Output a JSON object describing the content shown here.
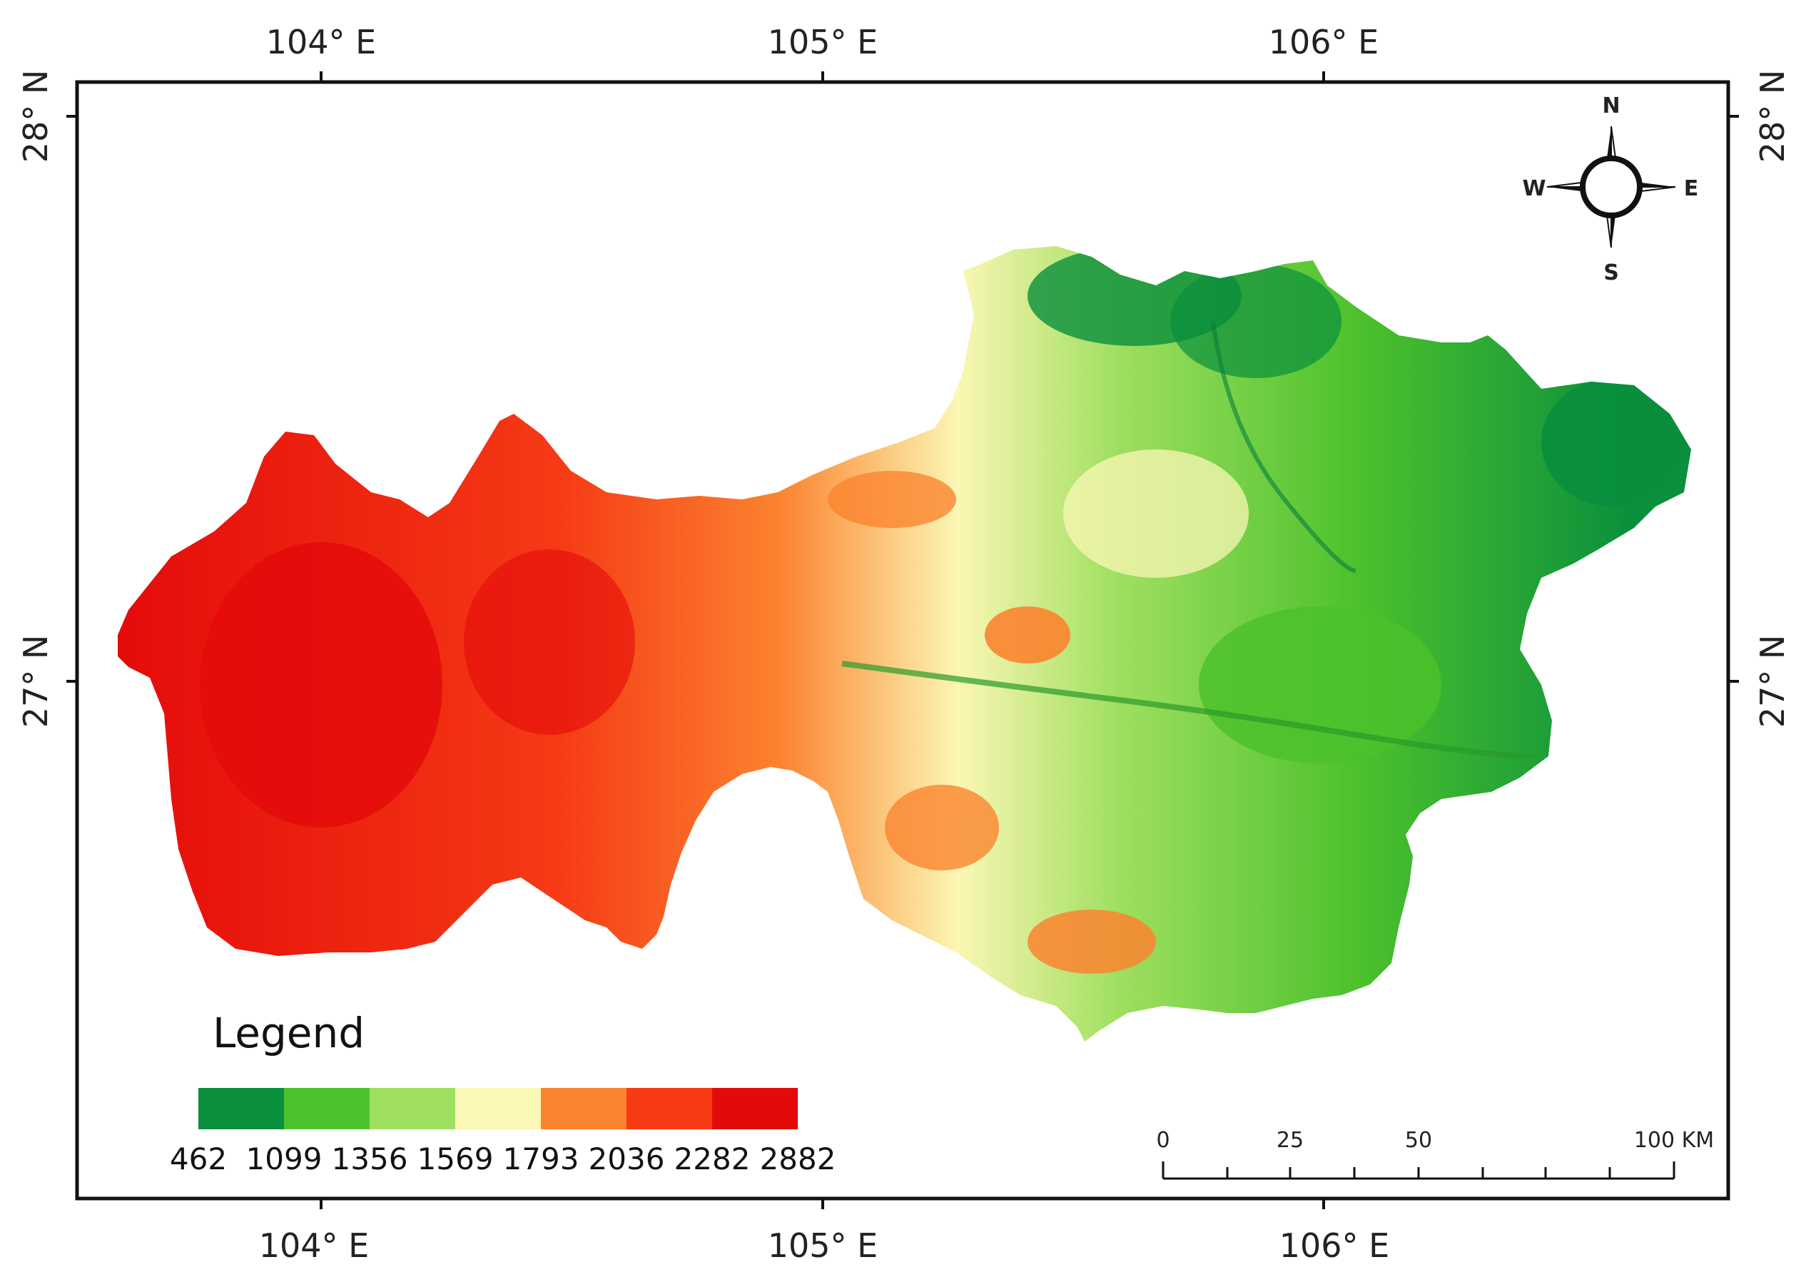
{
  "map": {
    "type": "elevation",
    "graticule": {
      "longitudes": [
        "104° E",
        "105° E",
        "106° E"
      ],
      "latitudes": [
        "28° N",
        "27° N"
      ]
    },
    "legend": {
      "title": "Legend",
      "breaks": [
        "462",
        "1099",
        "1356",
        "1569",
        "1793",
        "2036",
        "2282",
        "2882"
      ],
      "colors": [
        "#0a8f3c",
        "#4cc12c",
        "#9fdf60",
        "#fbf7b4",
        "#fb8430",
        "#f53a15",
        "#e40a0a"
      ]
    },
    "scale_bar": {
      "labels": [
        "0",
        "25",
        "50",
        "100 KM"
      ]
    },
    "north_arrow": {
      "icon": "compass-rose-icon",
      "labels": {
        "n": "N",
        "e": "E",
        "s": "S",
        "w": "W"
      }
    }
  }
}
